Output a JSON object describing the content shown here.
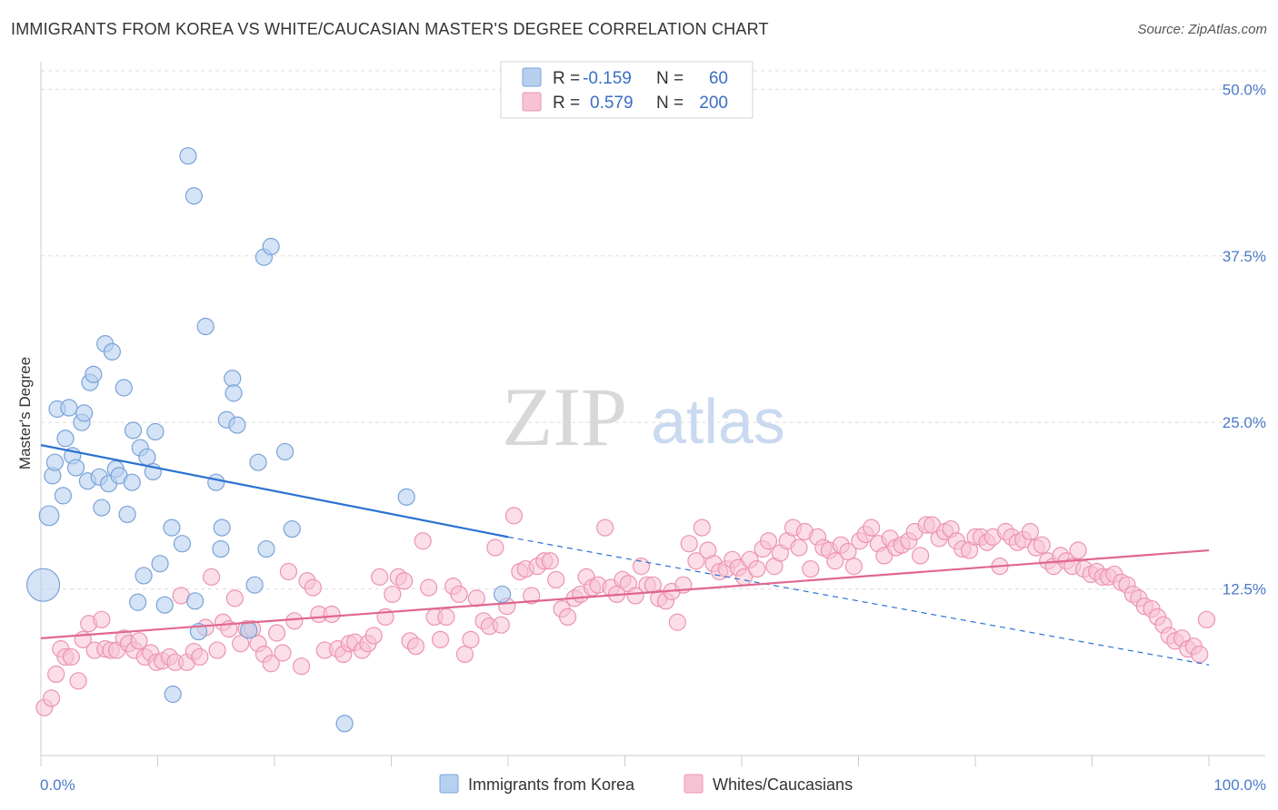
{
  "header": {
    "title": "IMMIGRANTS FROM KOREA VS WHITE/CAUCASIAN MASTER'S DEGREE CORRELATION CHART",
    "source": "Source: ZipAtlas.com"
  },
  "watermark": {
    "zip": "ZIP",
    "atlas": "atlas"
  },
  "colors": {
    "blue_fill": "#b8d0f0",
    "blue_stroke": "#7aa3d8",
    "blue_line": "#2a72d0",
    "pink_fill": "#f7c3d3",
    "pink_stroke": "#ec94b0",
    "pink_line": "#e0678f",
    "tick_text": "#4a7ac7",
    "grid": "#dddddd"
  },
  "legend": {
    "rows": [
      {
        "r_label": "R =",
        "r_value": "-0.159",
        "n_label": "N =",
        "n_value": "60"
      },
      {
        "r_label": "R =",
        "r_value": "0.579",
        "n_label": "N =",
        "n_value": "200"
      }
    ]
  },
  "chart_data": {
    "type": "scatter",
    "title": "IMMIGRANTS FROM KOREA VS WHITE/CAUCASIAN MASTER'S DEGREE CORRELATION CHART",
    "xlabel": "",
    "ylabel": "Master's Degree",
    "xlim": [
      0,
      100
    ],
    "ylim": [
      0,
      52
    ],
    "x_tick_labels": [
      "0.0%",
      "100.0%"
    ],
    "y_ticks": [
      12.5,
      25.0,
      37.5,
      50.0
    ],
    "y_tick_labels": [
      "12.5%",
      "25.0%",
      "37.5%",
      "50.0%"
    ],
    "grid": true,
    "legend_position": "bottom",
    "series": [
      {
        "name": "Immigrants from Korea",
        "r": -0.159,
        "n": 60,
        "trend": {
          "x0": 0,
          "y0": 23.3,
          "x1": 40,
          "y1": 16.4,
          "dash_to_x": 100,
          "dash_to_y": 6.8
        },
        "points": [
          [
            0.2,
            12.8,
            2.0
          ],
          [
            0.7,
            18.0,
            1.2
          ],
          [
            1.0,
            21.0,
            1.0
          ],
          [
            1.2,
            22.0,
            1.0
          ],
          [
            1.4,
            26.0,
            1.0
          ],
          [
            1.9,
            19.5,
            1.0
          ],
          [
            2.1,
            23.8,
            1.0
          ],
          [
            2.4,
            26.1,
            1.0
          ],
          [
            2.7,
            22.5,
            1.0
          ],
          [
            3.0,
            21.6,
            1.0
          ],
          [
            3.5,
            25.0,
            1.0
          ],
          [
            3.7,
            25.7,
            1.0
          ],
          [
            4.0,
            20.6,
            1.0
          ],
          [
            4.2,
            28.0,
            1.0
          ],
          [
            4.5,
            28.6,
            1.0
          ],
          [
            5.0,
            20.9,
            1.0
          ],
          [
            5.2,
            18.6,
            1.0
          ],
          [
            5.5,
            30.9,
            1.0
          ],
          [
            5.8,
            20.4,
            1.0
          ],
          [
            6.1,
            30.3,
            1.0
          ],
          [
            6.4,
            21.5,
            1.0
          ],
          [
            6.7,
            21.0,
            1.0
          ],
          [
            7.1,
            27.6,
            1.0
          ],
          [
            7.4,
            18.1,
            1.0
          ],
          [
            7.8,
            20.5,
            1.0
          ],
          [
            7.9,
            24.4,
            1.0
          ],
          [
            8.5,
            23.1,
            1.0
          ],
          [
            8.8,
            13.5,
            1.0
          ],
          [
            9.1,
            22.4,
            1.0
          ],
          [
            9.6,
            21.3,
            1.0
          ],
          [
            9.8,
            24.3,
            1.0
          ],
          [
            8.3,
            11.5,
            1.0
          ],
          [
            10.2,
            14.4,
            1.0
          ],
          [
            10.6,
            11.3,
            1.0
          ],
          [
            11.2,
            17.1,
            1.0
          ],
          [
            11.3,
            4.6,
            1.0
          ],
          [
            12.1,
            15.9,
            1.0
          ],
          [
            12.6,
            45.0,
            1.0
          ],
          [
            13.1,
            42.0,
            1.0
          ],
          [
            13.2,
            11.6,
            1.0
          ],
          [
            13.5,
            9.3,
            1.0
          ],
          [
            14.1,
            32.2,
            1.0
          ],
          [
            15.0,
            20.5,
            1.0
          ],
          [
            15.4,
            15.5,
            1.0
          ],
          [
            15.5,
            17.1,
            1.0
          ],
          [
            15.9,
            25.2,
            1.0
          ],
          [
            16.4,
            28.3,
            1.0
          ],
          [
            16.5,
            27.2,
            1.0
          ],
          [
            16.8,
            24.8,
            1.0
          ],
          [
            17.8,
            9.4,
            1.0
          ],
          [
            18.3,
            12.8,
            1.0
          ],
          [
            18.6,
            22.0,
            1.0
          ],
          [
            19.1,
            37.4,
            1.0
          ],
          [
            19.3,
            15.5,
            1.0
          ],
          [
            19.7,
            38.2,
            1.0
          ],
          [
            20.9,
            22.8,
            1.0
          ],
          [
            21.5,
            17.0,
            1.0
          ],
          [
            26.0,
            2.4,
            1.0
          ],
          [
            31.3,
            19.4,
            1.0
          ],
          [
            39.5,
            12.1,
            1.0
          ]
        ]
      },
      {
        "name": "Whites/Caucasians",
        "r": 0.579,
        "n": 200,
        "trend": {
          "x0": 0,
          "y0": 8.8,
          "x1": 100,
          "y1": 15.4
        },
        "points": [
          [
            0.3,
            3.6
          ],
          [
            0.9,
            4.3
          ],
          [
            1.3,
            6.1
          ],
          [
            1.7,
            8.0
          ],
          [
            2.1,
            7.4
          ],
          [
            2.6,
            7.4
          ],
          [
            3.2,
            5.6
          ],
          [
            3.6,
            8.7
          ],
          [
            4.1,
            9.9
          ],
          [
            4.6,
            7.9
          ],
          [
            5.2,
            10.2
          ],
          [
            5.5,
            8.0
          ],
          [
            6.0,
            7.9
          ],
          [
            6.5,
            7.9
          ],
          [
            7.1,
            8.8
          ],
          [
            7.5,
            8.4
          ],
          [
            8.0,
            7.9
          ],
          [
            8.4,
            8.6
          ],
          [
            8.9,
            7.4
          ],
          [
            9.4,
            7.7
          ],
          [
            9.9,
            7.0
          ],
          [
            10.4,
            7.1
          ],
          [
            11.0,
            7.4
          ],
          [
            11.5,
            7.0
          ],
          [
            12.0,
            12.0
          ],
          [
            12.5,
            7.0
          ],
          [
            13.1,
            7.8
          ],
          [
            13.6,
            7.4
          ],
          [
            14.1,
            9.6
          ],
          [
            14.6,
            13.4
          ],
          [
            15.1,
            7.9
          ],
          [
            15.6,
            10.0
          ],
          [
            16.1,
            9.5
          ],
          [
            16.6,
            11.8
          ],
          [
            17.1,
            8.4
          ],
          [
            17.6,
            9.5
          ],
          [
            18.1,
            9.5
          ],
          [
            18.6,
            8.4
          ],
          [
            19.1,
            7.6
          ],
          [
            19.7,
            6.9
          ],
          [
            20.2,
            9.2
          ],
          [
            20.7,
            7.7
          ],
          [
            21.2,
            13.8
          ],
          [
            21.7,
            10.1
          ],
          [
            22.3,
            6.7
          ],
          [
            22.8,
            13.1
          ],
          [
            23.3,
            12.6
          ],
          [
            23.8,
            10.6
          ],
          [
            24.3,
            7.9
          ],
          [
            24.9,
            10.6
          ],
          [
            25.4,
            8.0
          ],
          [
            25.9,
            7.6
          ],
          [
            26.4,
            8.4
          ],
          [
            26.9,
            8.5
          ],
          [
            27.5,
            7.9
          ],
          [
            28.0,
            8.4
          ],
          [
            28.5,
            9.0
          ],
          [
            29.0,
            13.4
          ],
          [
            29.5,
            10.4
          ],
          [
            30.1,
            12.1
          ],
          [
            30.6,
            13.4
          ],
          [
            31.1,
            13.1
          ],
          [
            31.6,
            8.6
          ],
          [
            32.1,
            8.2
          ],
          [
            32.7,
            16.1
          ],
          [
            33.2,
            12.6
          ],
          [
            33.7,
            10.4
          ],
          [
            34.2,
            8.7
          ],
          [
            34.7,
            10.4
          ],
          [
            35.3,
            12.7
          ],
          [
            35.8,
            12.1
          ],
          [
            36.3,
            7.6
          ],
          [
            36.8,
            8.7
          ],
          [
            37.3,
            11.8
          ],
          [
            37.9,
            10.1
          ],
          [
            38.4,
            9.7
          ],
          [
            38.9,
            15.6
          ],
          [
            39.4,
            9.8
          ],
          [
            39.9,
            11.2
          ],
          [
            40.5,
            18.0
          ],
          [
            41.0,
            13.8
          ],
          [
            41.5,
            14.0
          ],
          [
            42.0,
            12.0
          ],
          [
            42.5,
            14.2
          ],
          [
            43.1,
            14.6
          ],
          [
            43.6,
            14.6
          ],
          [
            44.1,
            13.2
          ],
          [
            44.6,
            11.0
          ],
          [
            45.1,
            10.4
          ],
          [
            45.7,
            11.8
          ],
          [
            46.2,
            12.1
          ],
          [
            46.7,
            13.4
          ],
          [
            47.2,
            12.6
          ],
          [
            47.7,
            12.8
          ],
          [
            48.3,
            17.1
          ],
          [
            48.8,
            12.6
          ],
          [
            49.3,
            12.1
          ],
          [
            49.8,
            13.2
          ],
          [
            50.3,
            12.9
          ],
          [
            50.9,
            12.0
          ],
          [
            51.4,
            14.2
          ],
          [
            51.9,
            12.8
          ],
          [
            52.4,
            12.8
          ],
          [
            52.9,
            11.8
          ],
          [
            53.5,
            11.6
          ],
          [
            54.0,
            12.3
          ],
          [
            54.5,
            10.0
          ],
          [
            55.0,
            12.8
          ],
          [
            55.5,
            15.9
          ],
          [
            56.1,
            14.6
          ],
          [
            56.6,
            17.1
          ],
          [
            57.1,
            15.4
          ],
          [
            57.6,
            14.4
          ],
          [
            58.1,
            13.8
          ],
          [
            58.7,
            14.0
          ],
          [
            59.2,
            14.7
          ],
          [
            59.7,
            14.1
          ],
          [
            60.2,
            13.4
          ],
          [
            60.7,
            14.7
          ],
          [
            61.3,
            14.0
          ],
          [
            61.8,
            15.5
          ],
          [
            62.3,
            16.1
          ],
          [
            62.8,
            14.2
          ],
          [
            63.3,
            15.2
          ],
          [
            63.9,
            16.1
          ],
          [
            64.4,
            17.1
          ],
          [
            64.9,
            15.6
          ],
          [
            65.4,
            16.8
          ],
          [
            65.9,
            14.0
          ],
          [
            66.5,
            16.4
          ],
          [
            67.0,
            15.6
          ],
          [
            67.5,
            15.4
          ],
          [
            68.0,
            14.6
          ],
          [
            68.5,
            15.8
          ],
          [
            69.1,
            15.3
          ],
          [
            69.6,
            14.2
          ],
          [
            70.1,
            16.1
          ],
          [
            70.6,
            16.6
          ],
          [
            71.1,
            17.1
          ],
          [
            71.7,
            15.9
          ],
          [
            72.2,
            15.0
          ],
          [
            72.7,
            16.3
          ],
          [
            73.2,
            15.6
          ],
          [
            73.7,
            15.8
          ],
          [
            74.3,
            16.1
          ],
          [
            74.8,
            16.8
          ],
          [
            75.3,
            15.0
          ],
          [
            75.8,
            17.3
          ],
          [
            76.3,
            17.3
          ],
          [
            76.9,
            16.3
          ],
          [
            77.4,
            16.8
          ],
          [
            77.9,
            17.0
          ],
          [
            78.4,
            16.1
          ],
          [
            78.9,
            15.5
          ],
          [
            79.5,
            15.4
          ],
          [
            80.0,
            16.4
          ],
          [
            80.5,
            16.4
          ],
          [
            81.0,
            16.0
          ],
          [
            81.5,
            16.4
          ],
          [
            82.1,
            14.2
          ],
          [
            82.6,
            16.8
          ],
          [
            83.1,
            16.4
          ],
          [
            83.6,
            16.0
          ],
          [
            84.1,
            16.2
          ],
          [
            84.7,
            16.8
          ],
          [
            85.2,
            15.6
          ],
          [
            85.7,
            15.8
          ],
          [
            86.2,
            14.6
          ],
          [
            86.7,
            14.2
          ],
          [
            87.3,
            15.0
          ],
          [
            87.8,
            14.6
          ],
          [
            88.3,
            14.2
          ],
          [
            88.8,
            15.4
          ],
          [
            89.3,
            14.0
          ],
          [
            89.9,
            13.6
          ],
          [
            90.4,
            13.8
          ],
          [
            90.9,
            13.4
          ],
          [
            91.4,
            13.4
          ],
          [
            91.9,
            13.6
          ],
          [
            92.5,
            13.0
          ],
          [
            93.0,
            12.8
          ],
          [
            93.5,
            12.1
          ],
          [
            94.0,
            11.8
          ],
          [
            94.5,
            11.2
          ],
          [
            95.1,
            11.0
          ],
          [
            95.6,
            10.4
          ],
          [
            96.1,
            9.8
          ],
          [
            96.6,
            9.0
          ],
          [
            97.1,
            8.6
          ],
          [
            97.7,
            8.8
          ],
          [
            98.2,
            8.0
          ],
          [
            98.7,
            8.2
          ],
          [
            99.2,
            7.6
          ],
          [
            99.8,
            10.2
          ]
        ]
      }
    ]
  },
  "bottom_legend": [
    {
      "label": "Immigrants from Korea"
    },
    {
      "label": "Whites/Caucasians"
    }
  ]
}
